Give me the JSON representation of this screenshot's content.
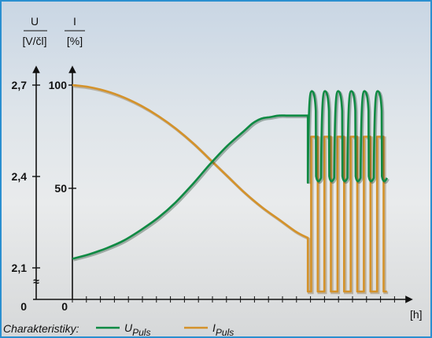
{
  "chart_data": {
    "type": "line",
    "axes": {
      "left": {
        "symbol": "U",
        "unit": "[V/čl]",
        "ticks": [
          "2,1",
          "2,4",
          "2,7"
        ],
        "zero_label": "0",
        "break_symbol": "≈"
      },
      "right": {
        "symbol": "I",
        "unit": "[%]",
        "ticks": [
          "50",
          "100"
        ],
        "zero_label": "0"
      },
      "x": {
        "unit": "[h]"
      }
    },
    "legend": {
      "label": "Charakteristiky:",
      "series": [
        {
          "name": "U",
          "subscript": "Puls",
          "color": "#0e8a43"
        },
        {
          "name": "I",
          "subscript": "Puls",
          "color": "#d4922a"
        }
      ]
    },
    "series": [
      {
        "name": "U_Puls",
        "axis": "left",
        "x": [
          0,
          1,
          2,
          3,
          4,
          5,
          6,
          7,
          8,
          9,
          10,
          10.5,
          11,
          11.5,
          12,
          12.5,
          13,
          13.5,
          13.7
        ],
        "values": [
          2.13,
          2.145,
          2.165,
          2.19,
          2.225,
          2.265,
          2.315,
          2.375,
          2.44,
          2.5,
          2.55,
          2.575,
          2.59,
          2.595,
          2.6,
          2.6,
          2.6,
          2.6,
          2.6
        ],
        "pulse_section": {
          "start_x": 13.7,
          "end_x": 18.3,
          "pulses": 6,
          "high": 2.68,
          "low": 2.38
        }
      },
      {
        "name": "I_Puls",
        "axis": "right",
        "x": [
          0,
          1,
          2,
          3,
          4,
          5,
          6,
          7,
          8,
          9,
          10,
          11,
          12,
          13,
          13.7
        ],
        "values": [
          100,
          99,
          97,
          94,
          90,
          85,
          79,
          72,
          64,
          56,
          48,
          41,
          35,
          29,
          26
        ],
        "pulse_section": {
          "start_x": 13.7,
          "end_x": 18.3,
          "pulses": 6,
          "high": 75,
          "low": 0
        }
      }
    ],
    "xlim": [
      0,
      19
    ],
    "ylim_left": [
      2.0,
      2.8
    ],
    "ylim_right": [
      0,
      100
    ],
    "grid": false
  }
}
